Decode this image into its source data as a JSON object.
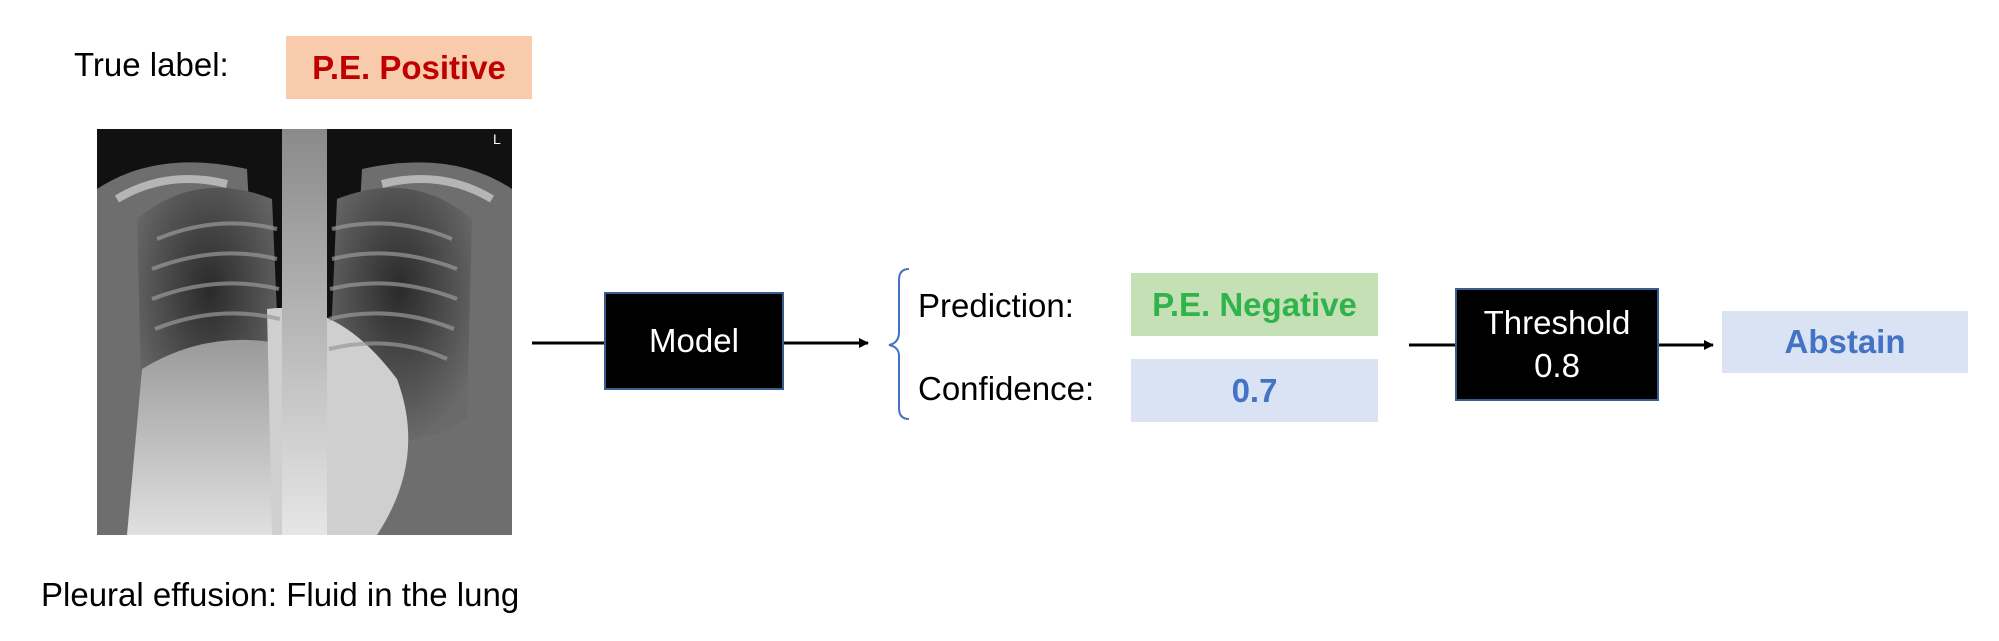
{
  "true_label": {
    "caption": "True label:",
    "value": "P.E. Positive"
  },
  "xray": {
    "marker": "L"
  },
  "model": {
    "label": "Model"
  },
  "prediction": {
    "caption": "Prediction:",
    "value": "P.E. Negative"
  },
  "confidence": {
    "caption": "Confidence:",
    "value": "0.7"
  },
  "threshold": {
    "label": "Threshold",
    "value": "0.8"
  },
  "decision": {
    "value": "Abstain"
  },
  "footer_caption": "Pleural effusion: Fluid in the lung",
  "colors": {
    "positive_bg": "#f8cbad",
    "positive_text": "#c00000",
    "negative_bg": "#c5e0b4",
    "negative_text": "#2fb34a",
    "neutral_bg": "#dae3f3",
    "neutral_text": "#4472c4"
  }
}
